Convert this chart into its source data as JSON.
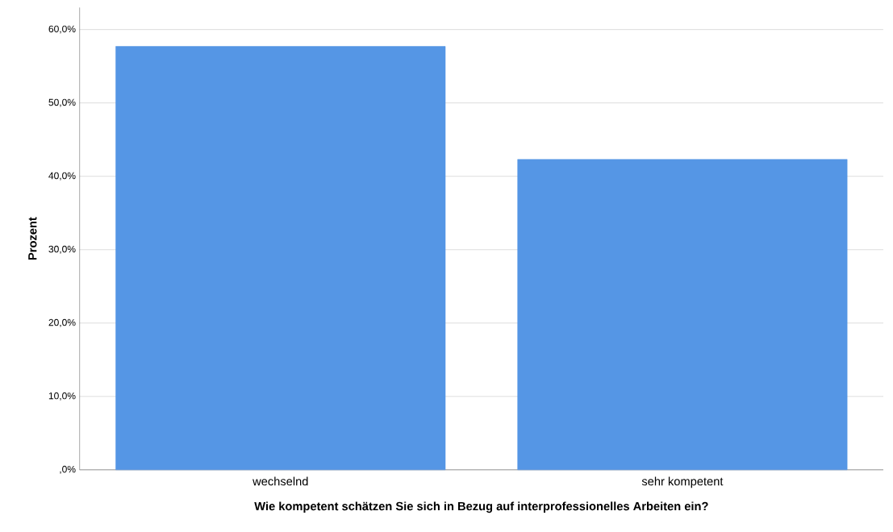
{
  "chart_data": {
    "type": "bar",
    "xlabel": "Wie kompetent schätzen Sie sich in Bezug auf interprofessionelles Arbeiten ein?",
    "ylabel": "Prozent",
    "categories": [
      "wechselnd",
      "sehr kompetent"
    ],
    "values": [
      57.7,
      42.3
    ],
    "color": "#5596e5",
    "ylim": [
      0,
      63
    ],
    "yticks": [
      {
        "value": 0,
        "label": ",0%"
      },
      {
        "value": 10,
        "label": "10,0%"
      },
      {
        "value": 20,
        "label": "20,0%"
      },
      {
        "value": 30,
        "label": "30,0%"
      },
      {
        "value": 40,
        "label": "40,0%"
      },
      {
        "value": 50,
        "label": "50,0%"
      },
      {
        "value": 60,
        "label": "60,0%"
      }
    ],
    "grid": "y"
  }
}
